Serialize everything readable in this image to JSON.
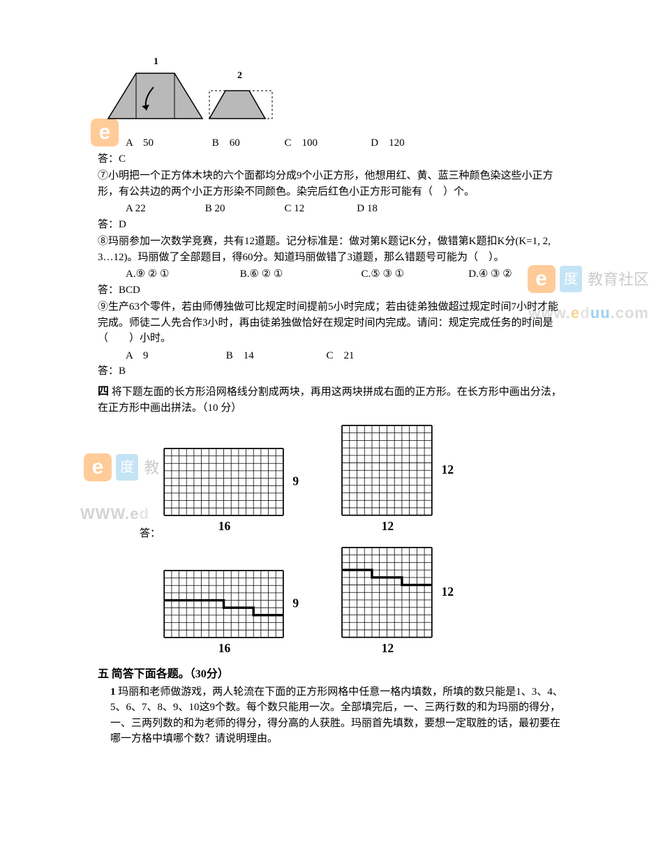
{
  "q6": {
    "fig1_label": "1",
    "fig2_label": "2",
    "options": {
      "a": "A　50",
      "b": "B　60",
      "c": "C　100",
      "d": "D　120"
    },
    "answer": "答：C"
  },
  "q7": {
    "num": "⑦",
    "text": "小明把一个正方体木块的六个面都均分成9个小正方形，他想用红、黄、蓝三种颜色染这些小正方形，有公共边的两个小正方形染不同颜色。染完后红色小正方形可能有（　）个。",
    "options": {
      "a": "A 22",
      "b": "B 20",
      "c": "C 12",
      "d": "D 18"
    },
    "answer": "答：D"
  },
  "q8": {
    "num": "⑧",
    "text": "玛丽参加一次数学竞赛，共有12道题。记分标准是：做对第K题记K分，做错第K题扣K分(K=1, 2, 3…12)。玛丽做了全部题目，得60分。知道玛丽做错了3道题，那么错题号可能为（　）。",
    "options": {
      "a": "A.⑨ ② ①",
      "b": "B.⑥ ② ①",
      "c": "C.⑤ ③ ①",
      "d": "D.④ ③ ②"
    },
    "answer": "答：BCD"
  },
  "q9": {
    "num": "⑨",
    "text": "生产63个零件，若由师傅独做可比规定时间提前5小时完成；若由徒弟独做超过规定时间7小时才能完成。师徒二人先合作3小时，再由徒弟独做恰好在规定时间内完成。请问：规定完成任务的时间是（　　）小时。",
    "options": {
      "a": "A　9",
      "b": "B　14",
      "c": "C　21"
    },
    "answer": "答：B"
  },
  "sec4": {
    "num": "四",
    "text": "将下题左面的长方形沿网格线分割成两块，再用这两块拼成右面的正方形。在长方形中画出分法，在正方形中画出拼法。（10 分）",
    "grid1": {
      "cols": 16,
      "rows": 9,
      "w_label": "16",
      "h_label": "9"
    },
    "grid2": {
      "cols": 12,
      "rows": 12,
      "w_label": "12",
      "h_label": "12"
    },
    "answer_label": "答：",
    "grid3": {
      "cols": 16,
      "rows": 9,
      "w_label": "16",
      "h_label": "9",
      "cut": [
        [
          0,
          4
        ],
        [
          8,
          4
        ],
        [
          8,
          5
        ],
        [
          12,
          5
        ],
        [
          12,
          6
        ],
        [
          16,
          6
        ]
      ]
    },
    "grid4": {
      "cols": 12,
      "rows": 12,
      "w_label": "12",
      "h_label": "12",
      "cut": [
        [
          0,
          3
        ],
        [
          4,
          3
        ],
        [
          4,
          4
        ],
        [
          8,
          4
        ],
        [
          8,
          5
        ],
        [
          12,
          5
        ]
      ]
    }
  },
  "sec5": {
    "num": "五",
    "title": "简答下面各题。（30分）",
    "q1_num": "1",
    "q1_text": "玛丽和老师做游戏，两人轮流在下面的正方形网格中任意一格内填数，所填的数只能是1、3、4、5、6、7、8、9、10这9个数。每个数只能用一次。全部填完后，一、三两行数的和为玛丽的得分，一、三两列数的和为老师的得分，得分高的人获胜。玛丽首先填数，要想一定取胜的话，最初要在哪一方格中填哪个数？请说明理由。"
  },
  "watermarks": {
    "brand_e": "e",
    "brand_du": "度",
    "brand_text_partial": "教",
    "brand_text": "教育社区",
    "url1": "WWW.",
    "url1b": "d",
    "url2": "WWW.e",
    "url2b": "d",
    "url3": "www.eduu.com"
  }
}
